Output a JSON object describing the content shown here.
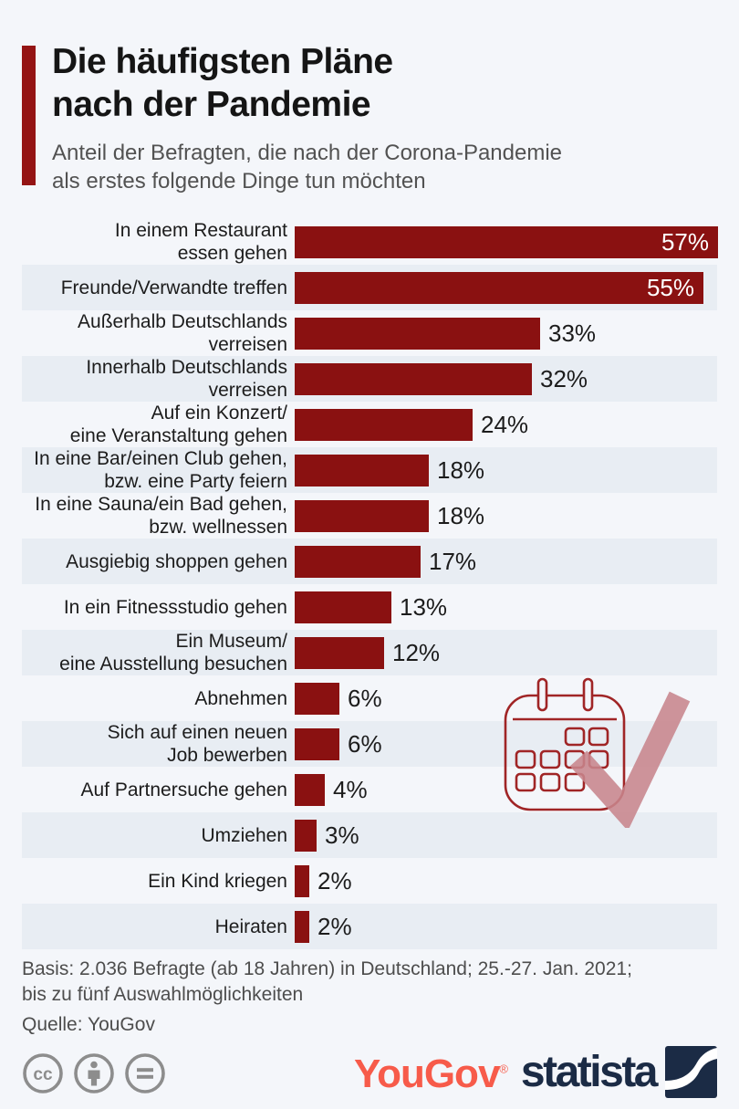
{
  "header": {
    "accent_color": "#941414",
    "title_lines": [
      "Die häufigsten Pläne",
      "nach der Pandemie"
    ],
    "subtitle_lines": [
      "Anteil der Befragten, die nach der Corona-Pandemie",
      "als erstes folgende Dinge tun möchten"
    ]
  },
  "chart_data": {
    "type": "bar",
    "orientation": "horizontal",
    "title": "Die häufigsten Pläne nach der Pandemie",
    "subtitle": "Anteil der Befragten, die nach der Corona-Pandemie als erstes folgende Dinge tun möchten",
    "unit": "%",
    "bar_color": "#8a1111",
    "stripe_color": "#e8edf3",
    "value_range": [
      0,
      57
    ],
    "grid": false,
    "legend": "none",
    "categories": [
      "In einem Restaurant essen gehen",
      "Freunde/Verwandte treffen",
      "Außerhalb Deutschlands verreisen",
      "Innerhalb Deutschlands verreisen",
      "Auf ein Konzert/ eine Veranstaltung gehen",
      "In eine Bar/einen Club gehen, bzw. eine Party feiern",
      "In eine Sauna/ein Bad gehen, bzw. wellnessen",
      "Ausgiebig shoppen gehen",
      "In ein Fitnessstudio gehen",
      "Ein Museum/ eine Ausstellung besuchen",
      "Abnehmen",
      "Sich auf einen neuen Job bewerben",
      "Auf Partnersuche gehen",
      "Umziehen",
      "Ein Kind kriegen",
      "Heiraten"
    ],
    "values": [
      57,
      55,
      33,
      32,
      24,
      18,
      18,
      17,
      13,
      12,
      6,
      6,
      4,
      3,
      2,
      2
    ],
    "items": [
      {
        "label_lines": [
          "In einem Restaurant",
          "essen gehen"
        ],
        "value": 57,
        "value_label": "57%"
      },
      {
        "label_lines": [
          "Freunde/Verwandte treffen"
        ],
        "value": 55,
        "value_label": "55%"
      },
      {
        "label_lines": [
          "Außerhalb Deutschlands",
          "verreisen"
        ],
        "value": 33,
        "value_label": "33%"
      },
      {
        "label_lines": [
          "Innerhalb Deutschlands",
          "verreisen"
        ],
        "value": 32,
        "value_label": "32%"
      },
      {
        "label_lines": [
          "Auf ein Konzert/",
          "eine Veranstaltung gehen"
        ],
        "value": 24,
        "value_label": "24%"
      },
      {
        "label_lines": [
          "In eine Bar/einen Club gehen,",
          "bzw. eine Party feiern"
        ],
        "value": 18,
        "value_label": "18%"
      },
      {
        "label_lines": [
          "In eine Sauna/ein Bad gehen,",
          "bzw. wellnessen"
        ],
        "value": 18,
        "value_label": "18%"
      },
      {
        "label_lines": [
          "Ausgiebig shoppen gehen"
        ],
        "value": 17,
        "value_label": "17%"
      },
      {
        "label_lines": [
          "In ein Fitnessstudio gehen"
        ],
        "value": 13,
        "value_label": "13%"
      },
      {
        "label_lines": [
          "Ein Museum/",
          "eine Ausstellung besuchen"
        ],
        "value": 12,
        "value_label": "12%"
      },
      {
        "label_lines": [
          "Abnehmen"
        ],
        "value": 6,
        "value_label": "6%"
      },
      {
        "label_lines": [
          "Sich auf einen neuen",
          "Job bewerben"
        ],
        "value": 6,
        "value_label": "6%"
      },
      {
        "label_lines": [
          "Auf Partnersuche gehen"
        ],
        "value": 4,
        "value_label": "4%"
      },
      {
        "label_lines": [
          "Umziehen"
        ],
        "value": 3,
        "value_label": "3%"
      },
      {
        "label_lines": [
          "Ein Kind kriegen"
        ],
        "value": 2,
        "value_label": "2%"
      },
      {
        "label_lines": [
          "Heiraten"
        ],
        "value": 2,
        "value_label": "2%"
      }
    ]
  },
  "decoration": {
    "icon": "calendar-check-icon",
    "calendar_stroke_color": "#a02526",
    "check_color": "#c7858c"
  },
  "footer": {
    "basis_lines": [
      "Basis: 2.036 Befragte (ab 18 Jahren) in Deutschland; 25.-27. Jan. 2021;",
      "bis zu fünf Auswahlmöglichkeiten"
    ],
    "source": "Quelle: YouGov"
  },
  "branding": {
    "license_icons": [
      "cc-license-icon",
      "cc-attribution-icon",
      "cc-no-derivatives-icon"
    ],
    "license_icon_color": "#8d8d8d",
    "yougov": {
      "label": "YouGov",
      "registered": "®",
      "color": "#f75b4a"
    },
    "statista": {
      "label": "statista",
      "color": "#1b2b45"
    }
  }
}
